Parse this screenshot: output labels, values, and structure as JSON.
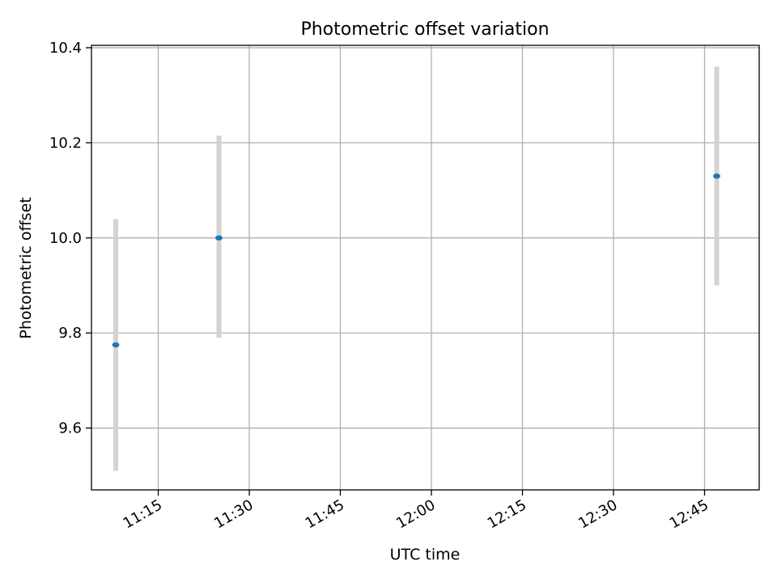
{
  "chart_data": {
    "type": "scatter",
    "title": "Photometric offset variation",
    "xlabel": "UTC time",
    "ylabel": "Photometric offset",
    "x_axis_type": "time",
    "xlim": [
      "11:04",
      "12:54"
    ],
    "ylim": [
      9.47,
      10.405
    ],
    "x_ticks": [
      "11:15",
      "11:30",
      "11:45",
      "12:00",
      "12:15",
      "12:30",
      "12:45"
    ],
    "y_ticks": [
      9.6,
      9.8,
      10.0,
      10.2,
      10.4
    ],
    "y_tick_labels": [
      "9.6",
      "9.8",
      "10.0",
      "10.2",
      "10.4"
    ],
    "grid": true,
    "legend": "none",
    "points": [
      {
        "x": "11:08",
        "y": 9.775,
        "ymin": 9.51,
        "ymax": 10.04
      },
      {
        "x": "11:25",
        "y": 10.0,
        "ymin": 9.79,
        "ymax": 10.215
      },
      {
        "x": "12:47",
        "y": 10.13,
        "ymin": 9.9,
        "ymax": 10.36
      }
    ],
    "colors": {
      "marker": "#1f77b4",
      "errorbar": "#d3d3d3",
      "grid": "#b0b0b0",
      "axes": "#000000"
    }
  }
}
